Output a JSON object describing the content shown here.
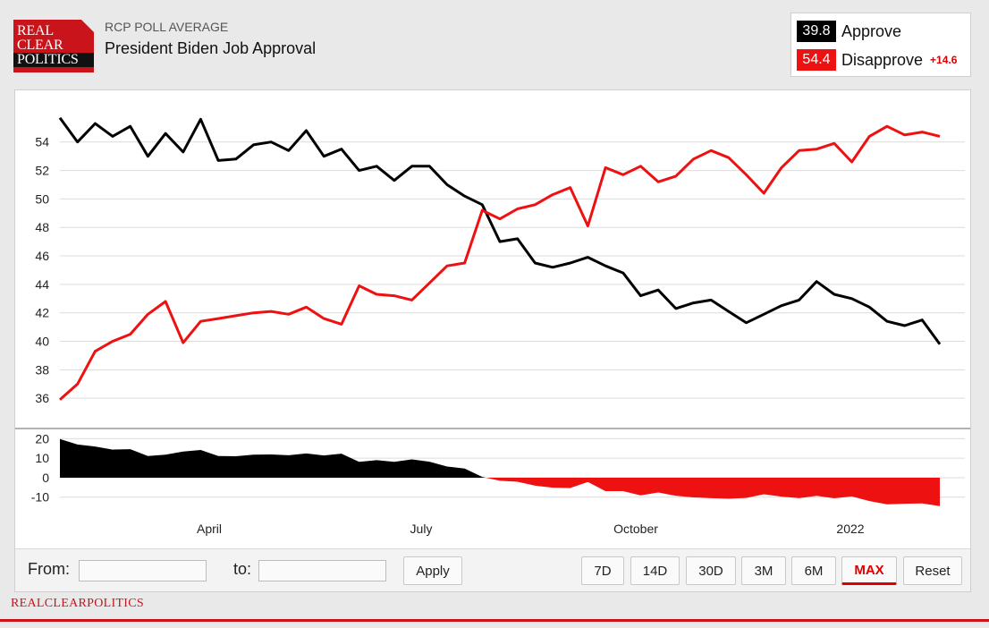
{
  "header": {
    "logo_lines": [
      "REAL",
      "CLEAR",
      "POLITICS"
    ],
    "kicker": "RCP POLL AVERAGE",
    "title": "President Biden Job Approval"
  },
  "legend": {
    "approve": {
      "value": "39.8",
      "label": "Approve",
      "color": "#000000"
    },
    "disapprove": {
      "value": "54.4",
      "label": "Disapprove",
      "color": "#ee1111"
    },
    "spread": "+14.6"
  },
  "controls": {
    "from_label": "From:",
    "to_label": "to:",
    "apply_label": "Apply",
    "ranges": [
      "7D",
      "14D",
      "30D",
      "3M",
      "6M",
      "MAX"
    ],
    "active_range": "MAX",
    "reset_label": "Reset"
  },
  "footer": {
    "brand": "REALCLEARPOLITICS"
  },
  "chart_data": {
    "type": "line",
    "title": "President Biden Job Approval",
    "x_ticks": [
      "April",
      "July",
      "October",
      "2022"
    ],
    "ylim": [
      34,
      57
    ],
    "y_ticks": [
      36,
      38,
      40,
      42,
      44,
      46,
      48,
      50,
      52,
      54
    ],
    "spread_ylim": [
      -17,
      22
    ],
    "spread_ticks": [
      20,
      10,
      0,
      -10
    ],
    "x": [
      0,
      2,
      4,
      6,
      8,
      10,
      12,
      14,
      16,
      18,
      20,
      22,
      24,
      26,
      28,
      30,
      32,
      34,
      36,
      38,
      40,
      42,
      44,
      46,
      48,
      50,
      52,
      54,
      56,
      58,
      60,
      62,
      64,
      66,
      68,
      70,
      72,
      74,
      76,
      78,
      80,
      82,
      84,
      86,
      88,
      90,
      92,
      94,
      96,
      98,
      100
    ],
    "series": [
      {
        "name": "Approve",
        "color": "#000000",
        "values": [
          55.7,
          54,
          55.3,
          54.4,
          55.1,
          53,
          54.6,
          53.3,
          55.6,
          52.7,
          52.8,
          53.8,
          54,
          53.4,
          54.8,
          53,
          53.5,
          52,
          52.3,
          51.3,
          52.3,
          52.3,
          51,
          50.2,
          49.6,
          47,
          47.2,
          45.5,
          45.2,
          45.5,
          45.9,
          45.3,
          44.8,
          43.2,
          43.6,
          42.3,
          42.7,
          42.9,
          42.1,
          41.3,
          41.9,
          42.5,
          42.9,
          44.2,
          43.3,
          43,
          42.4,
          41.4,
          41.1,
          41.5,
          39.8
        ]
      },
      {
        "name": "Disapprove",
        "color": "#ee1111",
        "values": [
          35.9,
          37,
          39.3,
          40,
          40.5,
          41.9,
          42.8,
          39.9,
          41.4,
          41.6,
          41.8,
          42,
          42.1,
          41.9,
          42.4,
          41.6,
          41.2,
          43.9,
          43.3,
          43.2,
          42.9,
          44.1,
          45.3,
          45.5,
          49.2,
          48.6,
          49.3,
          49.6,
          50.3,
          50.8,
          48.1,
          52.2,
          51.7,
          52.3,
          51.2,
          51.6,
          52.8,
          53.4,
          52.9,
          51.7,
          50.4,
          52.2,
          53.4,
          53.5,
          53.9,
          52.6,
          54.4,
          55.1,
          54.5,
          54.7,
          54.4
        ]
      }
    ]
  }
}
